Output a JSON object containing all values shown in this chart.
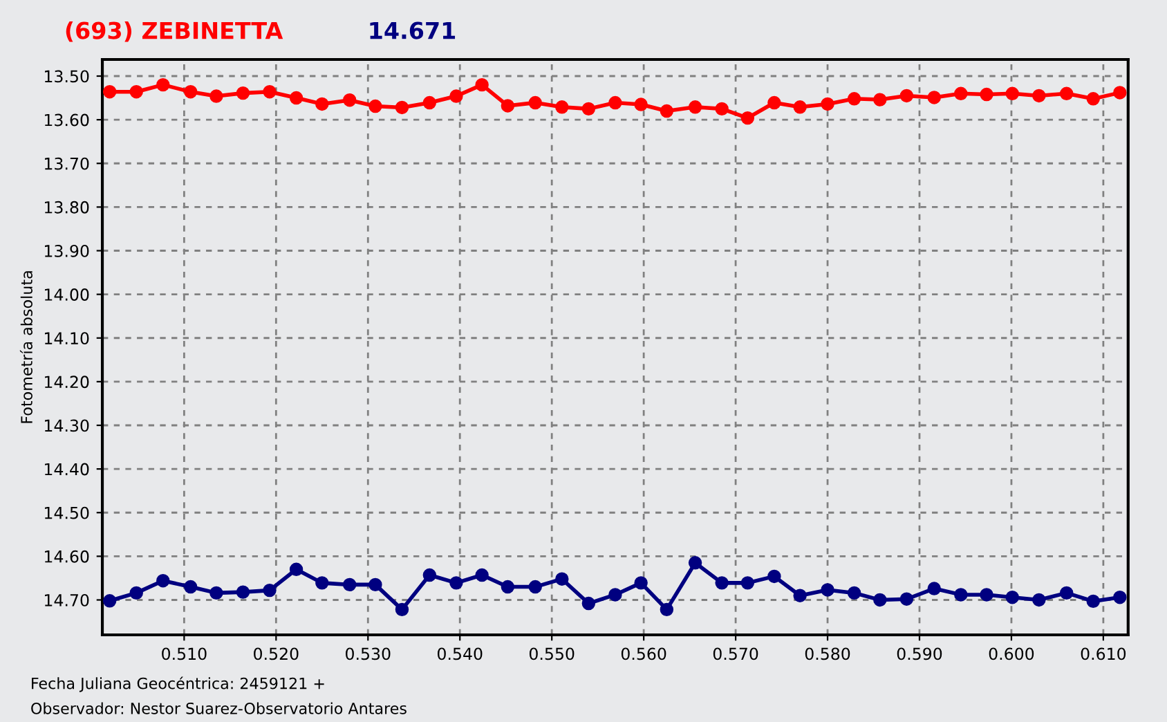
{
  "chart_data": {
    "type": "line",
    "title": "(693) ZEBINETTA",
    "subtitle": "14.671",
    "ylabel": "Fotometría absoluta",
    "annotations": [
      "Fecha Juliana Geocéntrica: 2459121 +",
      "Observador: Nestor Suarez-Observatorio Antares"
    ],
    "x": [
      0.5019,
      0.5048,
      0.5077,
      0.5107,
      0.5135,
      0.5164,
      0.5193,
      0.5222,
      0.525,
      0.528,
      0.5308,
      0.5337,
      0.5367,
      0.5396,
      0.5424,
      0.5452,
      0.5482,
      0.5511,
      0.554,
      0.5569,
      0.5597,
      0.5625,
      0.5656,
      0.5685,
      0.5713,
      0.5742,
      0.577,
      0.58,
      0.5829,
      0.5857,
      0.5886,
      0.5916,
      0.5945,
      0.5973,
      0.6001,
      0.603,
      0.606,
      0.6089,
      0.6118
    ],
    "series": [
      {
        "color": "#ff0000",
        "values": [
          13.536,
          13.536,
          13.52,
          13.536,
          13.546,
          13.539,
          13.536,
          13.55,
          13.564,
          13.555,
          13.569,
          13.572,
          13.561,
          13.546,
          13.52,
          13.568,
          13.561,
          13.571,
          13.575,
          13.561,
          13.565,
          13.58,
          13.571,
          13.575,
          13.596,
          13.561,
          13.571,
          13.564,
          13.552,
          13.554,
          13.545,
          13.549,
          13.54,
          13.542,
          13.54,
          13.545,
          13.54,
          13.552,
          13.538
        ]
      },
      {
        "color": "#000080",
        "values": [
          14.702,
          14.684,
          14.656,
          14.67,
          14.684,
          14.682,
          14.678,
          14.63,
          14.661,
          14.665,
          14.665,
          14.722,
          14.643,
          14.661,
          14.643,
          14.67,
          14.67,
          14.652,
          14.708,
          14.688,
          14.661,
          14.722,
          14.615,
          14.661,
          14.661,
          14.646,
          14.69,
          14.677,
          14.684,
          14.7,
          14.698,
          14.674,
          14.688,
          14.688,
          14.694,
          14.7,
          14.684,
          14.703,
          14.694
        ]
      }
    ],
    "xlim": [
      0.5011,
      0.6127
    ],
    "ylim": [
      14.78,
      13.462
    ],
    "xticks": [
      {
        "value": 0.51,
        "label": "0.510"
      },
      {
        "value": 0.52,
        "label": "0.520"
      },
      {
        "value": 0.53,
        "label": "0.530"
      },
      {
        "value": 0.54,
        "label": "0.540"
      },
      {
        "value": 0.55,
        "label": "0.550"
      },
      {
        "value": 0.56,
        "label": "0.560"
      },
      {
        "value": 0.57,
        "label": "0.570"
      },
      {
        "value": 0.58,
        "label": "0.580"
      },
      {
        "value": 0.59,
        "label": "0.590"
      },
      {
        "value": 0.6,
        "label": "0.600"
      },
      {
        "value": 0.61,
        "label": "0.610"
      }
    ],
    "yticks": [
      {
        "value": 13.5,
        "label": "13.50"
      },
      {
        "value": 13.6,
        "label": "13.60"
      },
      {
        "value": 13.7,
        "label": "13.70"
      },
      {
        "value": 13.8,
        "label": "13.80"
      },
      {
        "value": 13.9,
        "label": "13.90"
      },
      {
        "value": 14.0,
        "label": "14.00"
      },
      {
        "value": 14.1,
        "label": "14.10"
      },
      {
        "value": 14.2,
        "label": "14.20"
      },
      {
        "value": 14.3,
        "label": "14.30"
      },
      {
        "value": 14.4,
        "label": "14.40"
      },
      {
        "value": 14.5,
        "label": "14.50"
      },
      {
        "value": 14.6,
        "label": "14.60"
      },
      {
        "value": 14.7,
        "label": "14.70"
      }
    ],
    "grid": true,
    "marker": "circle",
    "line_style": "solid"
  }
}
